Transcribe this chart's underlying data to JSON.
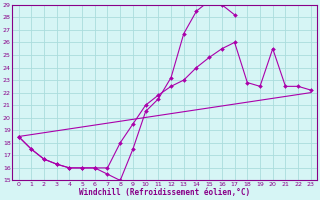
{
  "xlabel": "Windchill (Refroidissement éolien,°C)",
  "bg_color": "#d6f5f5",
  "grid_color": "#aadddd",
  "line_color": "#aa00aa",
  "xlim": [
    -0.5,
    23.5
  ],
  "ylim": [
    15,
    29
  ],
  "xticks": [
    0,
    1,
    2,
    3,
    4,
    5,
    6,
    7,
    8,
    9,
    10,
    11,
    12,
    13,
    14,
    15,
    16,
    17,
    18,
    19,
    20,
    21,
    22,
    23
  ],
  "yticks": [
    15,
    16,
    17,
    18,
    19,
    20,
    21,
    22,
    23,
    24,
    25,
    26,
    27,
    28,
    29
  ],
  "line1_x": [
    0,
    1,
    2,
    3,
    4,
    5,
    6,
    7,
    8,
    9,
    10,
    11,
    12,
    13,
    14,
    15,
    16,
    17
  ],
  "line1_y": [
    18.5,
    17.5,
    16.7,
    16.3,
    16.0,
    16.0,
    16.0,
    15.5,
    15.0,
    17.5,
    20.5,
    21.5,
    23.2,
    26.7,
    28.5,
    29.3,
    29.0,
    28.2
  ],
  "line2_x": [
    0,
    1,
    2,
    3,
    4,
    5,
    6,
    7,
    8,
    9,
    10,
    11,
    12,
    13,
    14,
    15,
    16,
    17,
    18,
    19,
    20,
    21,
    22,
    23
  ],
  "line2_y": [
    18.5,
    17.5,
    16.7,
    16.3,
    16.0,
    16.0,
    16.0,
    16.0,
    18.0,
    19.5,
    21.0,
    21.8,
    22.5,
    23.0,
    24.0,
    24.8,
    25.5,
    26.0,
    22.8,
    22.5,
    25.5,
    22.5,
    22.5,
    22.2
  ],
  "line3_x": [
    0,
    23
  ],
  "line3_y": [
    18.5,
    22.0
  ]
}
